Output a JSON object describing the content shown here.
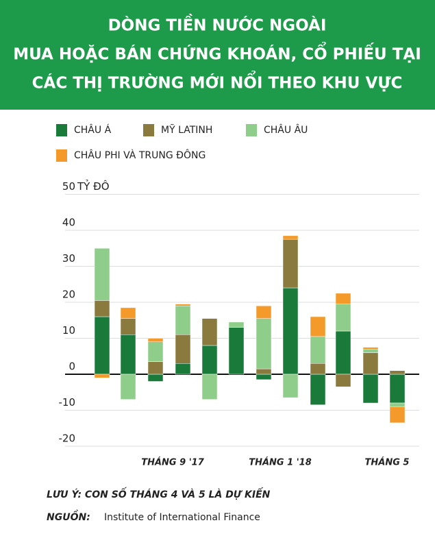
{
  "chart_data": {
    "type": "bar",
    "title": [
      "DÒNG TIỀN NƯỚC NGOÀI",
      "MUA HOẶC BÁN CHỨNG KHOÁN, CỔ PHIẾU TẠI",
      "CÁC THỊ TRƯỜNG MỚI NỔI THEO KHU VỰC"
    ],
    "y_unit": "TỶ ĐÔ",
    "stacked": true,
    "categories": [
      null,
      null,
      null,
      "THÁNG 9 '17",
      null,
      null,
      null,
      "THÁNG 1 '18",
      null,
      null,
      null,
      "THÁNG 5"
    ],
    "series": [
      {
        "name": "CHÂU Á",
        "color": "#1a7a3a",
        "values": [
          16,
          11,
          -2,
          3,
          8,
          13,
          -1.5,
          24,
          -8.5,
          12,
          -8,
          -8
        ]
      },
      {
        "name": "MỸ LATINH",
        "color": "#8a7a3e",
        "values": [
          4.5,
          4.5,
          3.5,
          8,
          7.5,
          0,
          1.5,
          13.5,
          3,
          -3.5,
          6,
          1
        ]
      },
      {
        "name": "CHÂU ÂU",
        "color": "#8fce8a",
        "values": [
          14.5,
          -7,
          5.5,
          8,
          -7,
          1.5,
          14,
          -6.5,
          7.5,
          7.5,
          1,
          -1
        ]
      },
      {
        "name": "CHÂU PHI VÀ TRUNG ĐÔNG",
        "color": "#f49a2a",
        "values": [
          -1,
          3,
          1,
          0.5,
          0,
          0,
          3.5,
          1,
          5.5,
          3,
          0.5,
          -4.5
        ]
      }
    ],
    "ylim": [
      -20,
      50
    ],
    "yticks": [
      -20,
      -10,
      0,
      10,
      20,
      30,
      40,
      50
    ],
    "grid": true,
    "note": "LƯU Ý: CON SỐ THÁNG 4 VÀ 5 LÀ DỰ KIẾN",
    "source_label": "NGUỒN:",
    "source": "Institute of International Finance"
  }
}
